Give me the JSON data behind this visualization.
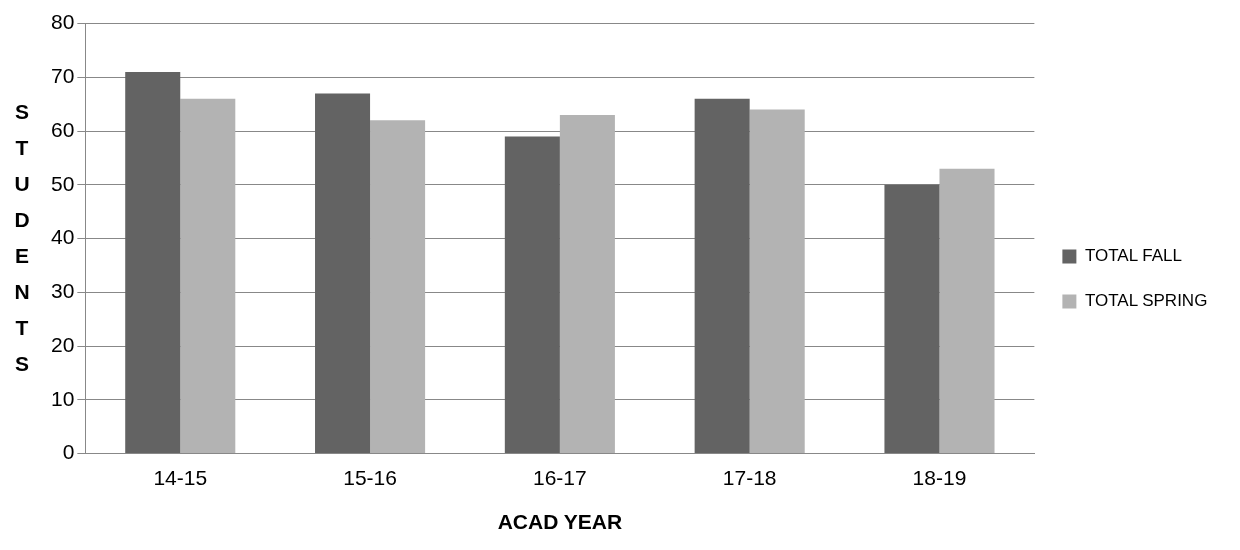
{
  "chart_data": {
    "type": "bar",
    "xlabel": "ACAD YEAR",
    "ylabel": "STUDENTS",
    "categories": [
      "14-15",
      "15-16",
      "16-17",
      "17-18",
      "18-19"
    ],
    "series": [
      {
        "name": "TOTAL FALL",
        "color": "#636363",
        "values": [
          71,
          67,
          59,
          66,
          50
        ]
      },
      {
        "name": "TOTAL SPRING",
        "color": "#b3b3b3",
        "values": [
          66,
          62,
          63,
          64,
          53
        ]
      }
    ],
    "ylim": [
      0,
      80
    ],
    "yticks": [
      0,
      10,
      20,
      30,
      40,
      50,
      60,
      70,
      80
    ],
    "grid": "y",
    "legend": "right"
  }
}
